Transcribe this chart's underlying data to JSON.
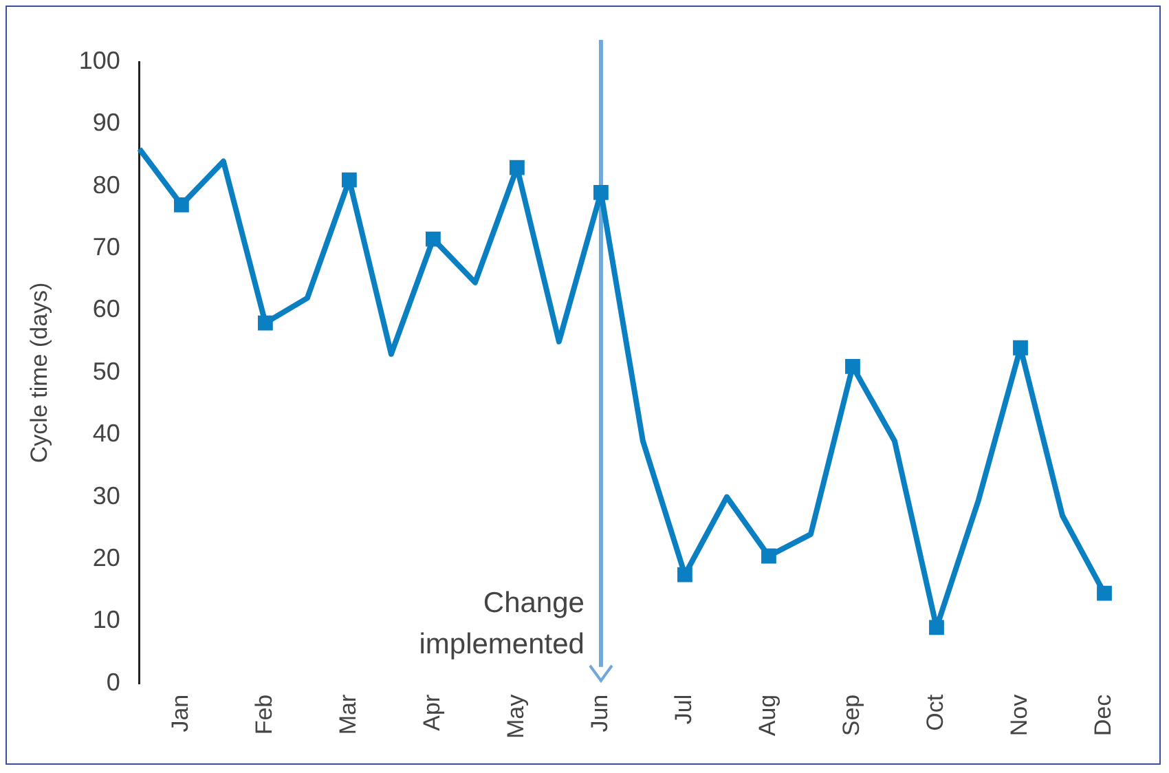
{
  "chart_data": {
    "type": "line",
    "ylabel": "Cycle time (days)",
    "categories": [
      null,
      "Jan",
      null,
      "Feb",
      null,
      "Mar",
      null,
      "Apr",
      null,
      "May",
      null,
      "Jun",
      null,
      "Jul",
      null,
      "Aug",
      null,
      "Sep",
      null,
      "Oct",
      null,
      "Nov",
      null,
      "Dec"
    ],
    "series": [
      {
        "color": "#0a7fc2",
        "marker": "none",
        "values": [
          86,
          77,
          84,
          58,
          62,
          81,
          53,
          71.5,
          64.5,
          83,
          55,
          79,
          39,
          17.5,
          30,
          20.5,
          24,
          51,
          39,
          9,
          29.5,
          54,
          27,
          14.5
        ]
      },
      {
        "type": "scatter",
        "color": "#0a7fc2",
        "marker": "square",
        "x": [
          "Jan",
          "Feb",
          "Mar",
          "Apr",
          "May",
          "Jun",
          "Jul",
          "Aug",
          "Sep",
          "Oct",
          "Nov",
          "Dec"
        ],
        "values": [
          77,
          58,
          81,
          71.5,
          83,
          79,
          17.5,
          20.5,
          51,
          9,
          54,
          14.5
        ]
      }
    ],
    "ylim": [
      0,
      100
    ],
    "yticks": [
      0,
      10,
      20,
      30,
      40,
      50,
      60,
      70,
      80,
      90,
      100
    ],
    "grid": false,
    "legend": false,
    "ref_lines": [
      {
        "axis": "x",
        "value": "Jun",
        "label": "Change implemented",
        "color": "#6fa8dc"
      }
    ]
  }
}
